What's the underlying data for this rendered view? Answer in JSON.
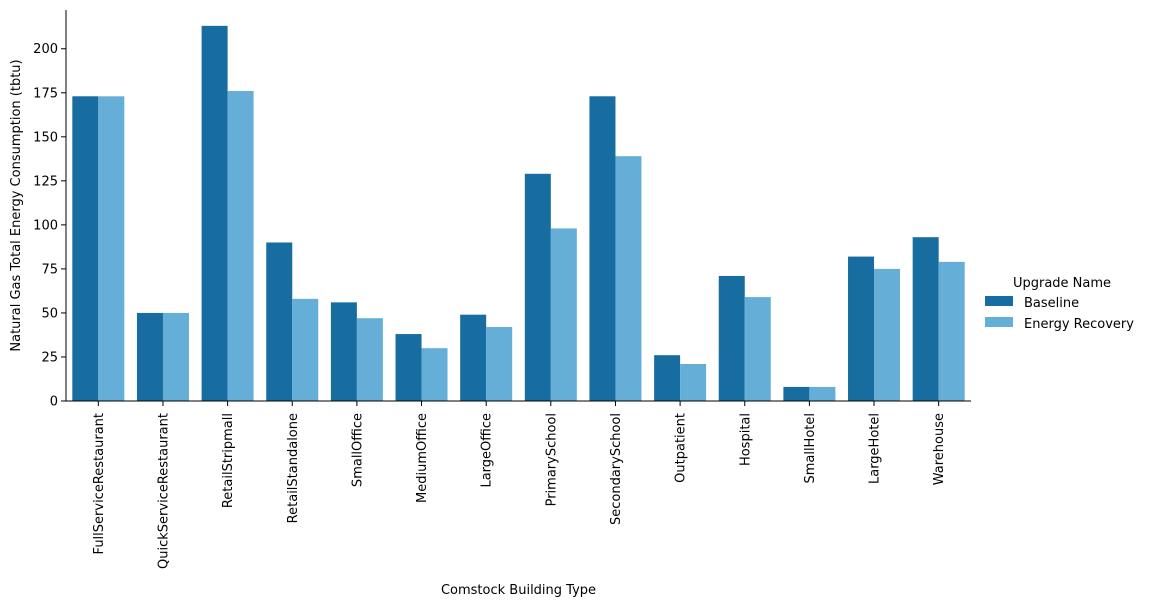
{
  "chart_data": {
    "type": "bar",
    "xlabel": "Comstock Building Type",
    "ylabel": "Natural Gas Total Energy Consumption (tbtu)",
    "ylim": [
      0,
      222
    ],
    "yticks": [
      0,
      25,
      50,
      75,
      100,
      125,
      150,
      175,
      200
    ],
    "grid": false,
    "legend": {
      "title": "Upgrade Name",
      "position": "right"
    },
    "categories": [
      "FullServiceRestaurant",
      "QuickServiceRestaurant",
      "RetailStripmall",
      "RetailStandalone",
      "SmallOffice",
      "MediumOffice",
      "LargeOffice",
      "PrimarySchool",
      "SecondarySchool",
      "Outpatient",
      "Hospital",
      "SmallHotel",
      "LargeHotel",
      "Warehouse"
    ],
    "series": [
      {
        "name": "Baseline",
        "color": "#176ca0",
        "values": [
          173,
          50,
          213,
          90,
          56,
          38,
          49,
          129,
          173,
          26,
          71,
          8,
          82,
          93
        ]
      },
      {
        "name": "Energy Recovery",
        "color": "#65aed8",
        "values": [
          173,
          50,
          176,
          58,
          47,
          30,
          42,
          98,
          139,
          21,
          59,
          8,
          75,
          79
        ]
      }
    ]
  }
}
